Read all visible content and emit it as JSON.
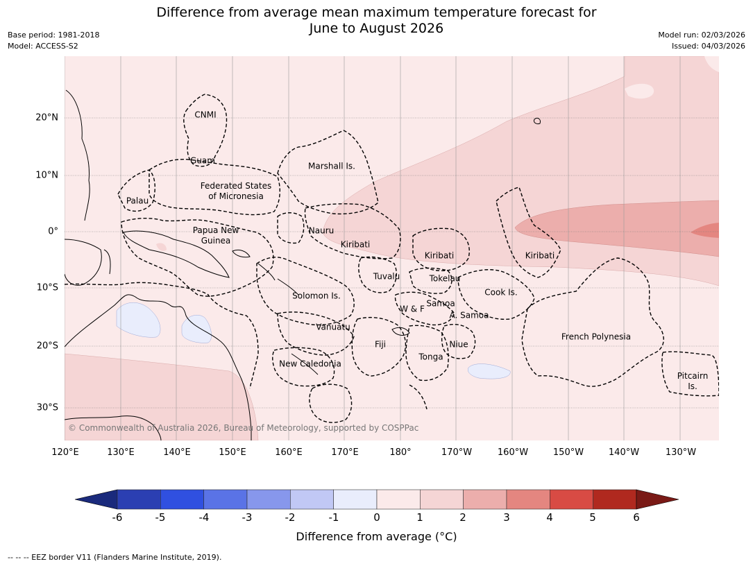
{
  "header": {
    "title_line1": "Difference from average mean maximum temperature forecast for",
    "title_line2": "June to August 2026",
    "base_period": "Base period: 1981-2018",
    "model": "Model: ACCESS-S2",
    "model_run": "Model run: 02/03/2026",
    "issued": "Issued: 04/03/2026"
  },
  "map": {
    "lon_labels": [
      "120°E",
      "130°E",
      "140°E",
      "150°E",
      "160°E",
      "170°E",
      "180°",
      "170°W",
      "160°W",
      "150°W",
      "140°W",
      "130°W"
    ],
    "lat_labels": [
      "20°N",
      "10°N",
      "0°",
      "10°S",
      "20°S",
      "30°S"
    ],
    "regions": {
      "cnmi": "CNMI",
      "guam": "Guam",
      "marshall": "Marshall Is.",
      "fsm1": "Federated States",
      "fsm2": "of Micronesia",
      "palau": "Palau",
      "png1": "Papua New",
      "png2": "Guinea",
      "nauru": "Nauru",
      "kiribati_w": "Kiribati",
      "kiribati_c": "Kiribati",
      "kiribati_e": "Kiribati",
      "tuvalu": "Tuvalu",
      "tokelau": "Tokelau",
      "cook": "Cook Is.",
      "solomon": "Solomon Is.",
      "samoa": "Samoa",
      "wf": "W & F",
      "asamoa": "A. Samoa",
      "vanuatu": "Vanuatu",
      "fiji": "Fiji",
      "niue": "Niue",
      "fpoly": "French Polynesia",
      "tonga": "Tonga",
      "newcal": "New Caledonia",
      "pitcairn1": "Pitcairn",
      "pitcairn2": "Is."
    },
    "credit": "© Commonwealth of Australia 2026, Bureau of Meteorology, supported by COSPPac"
  },
  "colorbar": {
    "ticks": [
      "-6",
      "-5",
      "-4",
      "-3",
      "-2",
      "-1",
      "0",
      "1",
      "2",
      "3",
      "4",
      "5",
      "6"
    ],
    "colors": [
      "#1a2a7c",
      "#2b3fb2",
      "#3050e0",
      "#5a73e6",
      "#8797ec",
      "#c1c8f5",
      "#e9edfc",
      "#fbeaea",
      "#f5d5d5",
      "#ecaeac",
      "#e48680",
      "#d84b44",
      "#b0291f",
      "#7a1a16"
    ],
    "label": "Difference from average (°C)"
  },
  "footnote": "--  --  -- EEZ border V11 (Flanders Marine Institute, 2019)."
}
